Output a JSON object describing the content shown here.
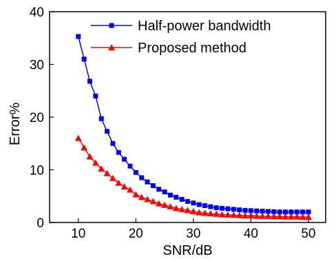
{
  "chart_data": {
    "type": "line",
    "title": "",
    "xlabel": "SNR/dB",
    "ylabel": "Error%",
    "xlim": [
      5,
      53
    ],
    "ylim": [
      0,
      40
    ],
    "xticks": [
      10,
      20,
      30,
      40,
      50
    ],
    "yticks": [
      0,
      10,
      20,
      30,
      40
    ],
    "grid": false,
    "legend_position": "top-right",
    "x": [
      10,
      11,
      12,
      13,
      14,
      15,
      16,
      17,
      18,
      19,
      20,
      21,
      22,
      23,
      24,
      25,
      26,
      27,
      28,
      29,
      30,
      31,
      32,
      33,
      34,
      35,
      36,
      37,
      38,
      39,
      40,
      41,
      42,
      43,
      44,
      45,
      46,
      47,
      48,
      49,
      50
    ],
    "series": [
      {
        "name": "Half-power bandwidth",
        "color": "#0000ff",
        "marker": "square",
        "values": [
          35.3,
          31.0,
          26.8,
          24.0,
          19.7,
          17.3,
          15.0,
          13.3,
          12.0,
          10.7,
          9.5,
          8.5,
          7.7,
          7.0,
          6.3,
          5.8,
          5.2,
          4.8,
          4.4,
          4.0,
          3.7,
          3.4,
          3.2,
          3.0,
          2.8,
          2.7,
          2.6,
          2.5,
          2.4,
          2.3,
          2.25,
          2.2,
          2.15,
          2.1,
          2.05,
          2.0,
          2.0,
          2.0,
          2.0,
          2.0,
          2.0
        ]
      },
      {
        "name": "Proposed method",
        "color": "#ff0000",
        "marker": "triangle",
        "values": [
          16.0,
          14.2,
          12.5,
          11.3,
          10.2,
          9.3,
          8.4,
          7.5,
          6.8,
          6.2,
          5.3,
          4.8,
          4.4,
          4.0,
          3.6,
          3.3,
          3.0,
          2.7,
          2.5,
          2.3,
          2.1,
          1.9,
          1.8,
          1.7,
          1.6,
          1.5,
          1.45,
          1.4,
          1.35,
          1.3,
          1.3,
          1.25,
          1.2,
          1.2,
          1.15,
          1.15,
          1.1,
          1.1,
          1.1,
          1.05,
          1.05
        ]
      }
    ]
  }
}
